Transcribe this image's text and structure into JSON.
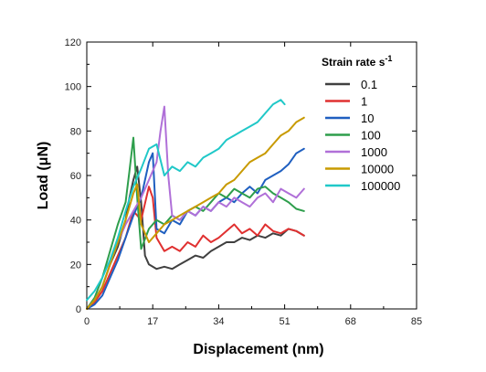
{
  "chart_data": {
    "type": "line",
    "xlabel": "Displacement (nm)",
    "ylabel": "Load (μN)",
    "xlim": [
      0,
      85
    ],
    "ylim": [
      0,
      120
    ],
    "xticks": [
      0,
      17,
      34,
      51,
      68,
      85
    ],
    "yticks": [
      0,
      20,
      40,
      60,
      80,
      100,
      120
    ],
    "grid": false,
    "legend": {
      "title_main": "Strain rate s",
      "title_sup": "-1",
      "placement": "top-right"
    },
    "series": [
      {
        "name": "0.1",
        "color": "#404040",
        "x": [
          0,
          2,
          4,
          6,
          8,
          10,
          11,
          12,
          13,
          14,
          15,
          16,
          18,
          20,
          22,
          24,
          26,
          28,
          30,
          32,
          34,
          36,
          38,
          40,
          42,
          44,
          46,
          48,
          50,
          52,
          54,
          56
        ],
        "y": [
          0,
          4,
          10,
          20,
          28,
          40,
          50,
          58,
          64,
          48,
          24,
          20,
          18,
          19,
          18,
          20,
          22,
          24,
          23,
          26,
          28,
          30,
          30,
          32,
          31,
          33,
          32,
          34,
          33,
          36,
          35,
          33
        ]
      },
      {
        "name": "1",
        "color": "#e03030",
        "x": [
          0,
          2,
          4,
          6,
          8,
          10,
          12,
          14,
          16,
          17,
          18,
          20,
          22,
          24,
          26,
          28,
          30,
          32,
          34,
          36,
          38,
          40,
          42,
          44,
          46,
          48,
          50,
          52,
          54,
          56
        ],
        "y": [
          0,
          3,
          8,
          16,
          24,
          32,
          44,
          40,
          55,
          50,
          32,
          26,
          28,
          26,
          30,
          28,
          33,
          30,
          32,
          35,
          38,
          34,
          36,
          33,
          38,
          35,
          34,
          36,
          35,
          33
        ]
      },
      {
        "name": "10",
        "color": "#1f5fc0",
        "x": [
          0,
          2,
          4,
          6,
          8,
          10,
          12,
          14,
          16,
          17,
          18,
          20,
          22,
          24,
          26,
          28,
          30,
          32,
          34,
          36,
          38,
          40,
          42,
          44,
          46,
          48,
          50,
          52,
          54,
          56
        ],
        "y": [
          0,
          2,
          6,
          14,
          22,
          32,
          42,
          50,
          66,
          70,
          36,
          34,
          40,
          38,
          44,
          42,
          46,
          44,
          48,
          50,
          48,
          52,
          55,
          52,
          58,
          60,
          62,
          65,
          70,
          72
        ]
      },
      {
        "name": "100",
        "color": "#2e9e4c",
        "x": [
          0,
          2,
          4,
          6,
          8,
          10,
          11,
          12,
          13,
          14,
          16,
          18,
          20,
          22,
          24,
          26,
          28,
          30,
          32,
          34,
          36,
          38,
          40,
          42,
          44,
          46,
          48,
          50,
          52,
          54,
          56
        ],
        "y": [
          0,
          5,
          14,
          26,
          38,
          48,
          62,
          77,
          50,
          27,
          36,
          40,
          38,
          42,
          40,
          44,
          46,
          44,
          48,
          52,
          50,
          54,
          52,
          50,
          54,
          55,
          52,
          50,
          48,
          45,
          44
        ]
      },
      {
        "name": "1000",
        "color": "#b070d8",
        "x": [
          0,
          2,
          4,
          6,
          8,
          10,
          12,
          14,
          16,
          18,
          19,
          20,
          21,
          22,
          24,
          26,
          28,
          30,
          32,
          34,
          36,
          38,
          40,
          42,
          44,
          46,
          48,
          50,
          52,
          54,
          56
        ],
        "y": [
          0,
          4,
          10,
          20,
          30,
          38,
          44,
          50,
          58,
          66,
          80,
          91,
          60,
          42,
          40,
          44,
          42,
          46,
          44,
          48,
          46,
          50,
          48,
          46,
          50,
          52,
          48,
          54,
          52,
          50,
          54
        ]
      },
      {
        "name": "10000",
        "color": "#c89a00",
        "x": [
          0,
          2,
          4,
          6,
          8,
          10,
          12,
          13,
          14,
          16,
          18,
          20,
          22,
          24,
          26,
          28,
          30,
          32,
          34,
          36,
          38,
          40,
          42,
          44,
          46,
          48,
          50,
          52,
          54,
          56
        ],
        "y": [
          0,
          4,
          10,
          20,
          30,
          40,
          52,
          56,
          38,
          30,
          34,
          38,
          40,
          42,
          44,
          46,
          48,
          50,
          52,
          56,
          58,
          62,
          66,
          68,
          70,
          74,
          78,
          80,
          84,
          86
        ]
      },
      {
        "name": "100000",
        "color": "#20c8c8",
        "x": [
          0,
          2,
          4,
          6,
          8,
          10,
          12,
          14,
          16,
          18,
          20,
          22,
          24,
          26,
          28,
          30,
          32,
          34,
          36,
          38,
          40,
          42,
          44,
          46,
          48,
          50,
          51
        ],
        "y": [
          4,
          8,
          14,
          22,
          32,
          44,
          55,
          63,
          72,
          74,
          60,
          64,
          62,
          66,
          64,
          68,
          70,
          72,
          76,
          78,
          80,
          82,
          84,
          88,
          92,
          94,
          92
        ]
      }
    ]
  }
}
